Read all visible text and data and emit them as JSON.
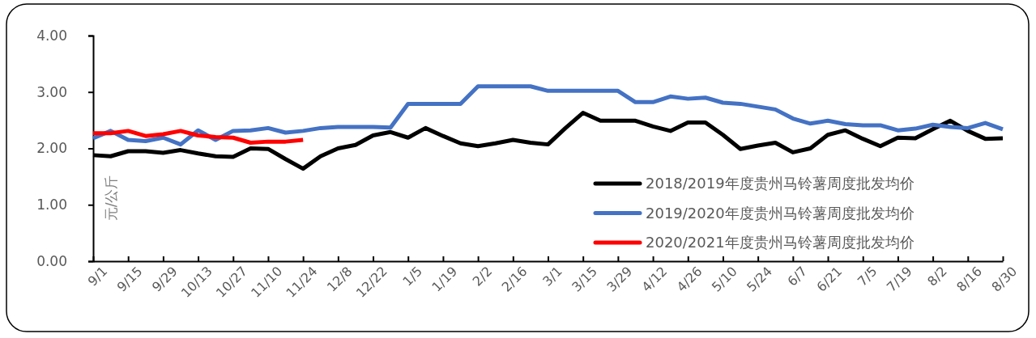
{
  "chart_data": {
    "type": "line",
    "ylabel": "元/公斤",
    "categories": [
      "9/1",
      null,
      "9/15",
      null,
      "9/29",
      null,
      "10/13",
      null,
      "10/27",
      null,
      "11/10",
      null,
      "11/24",
      null,
      "12/8",
      null,
      "12/22",
      null,
      "1/5",
      null,
      "1/19",
      null,
      "2/2",
      null,
      "2/16",
      null,
      "3/1",
      null,
      "3/15",
      null,
      "3/29",
      null,
      "4/12",
      null,
      "4/26",
      null,
      "5/10",
      null,
      "5/24",
      null,
      "6/7",
      null,
      "6/21",
      null,
      "7/5",
      null,
      "7/19",
      null,
      "8/2",
      null,
      "8/16",
      null,
      "8/30"
    ],
    "series": [
      {
        "name": "2018/2019年度贵州马铃薯周度批发均价",
        "color": "#000000",
        "values": [
          1.88,
          1.86,
          1.95,
          1.95,
          1.92,
          1.97,
          1.91,
          1.86,
          1.85,
          2.0,
          1.99,
          1.81,
          1.64,
          1.86,
          2.0,
          2.06,
          2.23,
          2.29,
          2.19,
          2.36,
          2.22,
          2.09,
          2.04,
          2.09,
          2.15,
          2.1,
          2.07,
          2.36,
          2.63,
          2.49,
          2.49,
          2.49,
          2.39,
          2.31,
          2.46,
          2.46,
          2.24,
          1.99,
          2.05,
          2.1,
          1.93,
          2.0,
          2.24,
          2.32,
          2.17,
          2.04,
          2.19,
          2.18,
          2.34,
          2.49,
          2.31,
          2.17,
          2.18
        ]
      },
      {
        "name": "2019/2020年度贵州马铃薯周度批发均价",
        "color": "#4472c4",
        "values": [
          2.18,
          2.31,
          2.15,
          2.13,
          2.19,
          2.07,
          2.32,
          2.15,
          2.31,
          2.32,
          2.36,
          2.28,
          2.31,
          2.36,
          2.38,
          2.38,
          2.38,
          2.37,
          2.79,
          2.79,
          2.79,
          2.79,
          3.1,
          3.1,
          3.1,
          3.1,
          3.02,
          3.02,
          3.02,
          3.02,
          3.02,
          2.82,
          2.82,
          2.92,
          2.88,
          2.9,
          2.81,
          2.79,
          2.74,
          2.69,
          2.53,
          2.44,
          2.49,
          2.43,
          2.41,
          2.41,
          2.32,
          2.35,
          2.42,
          2.38,
          2.36,
          2.45,
          2.34
        ]
      },
      {
        "name": "2020/2021年度贵州马铃薯周度批发均价",
        "color": "#ff0000",
        "values": [
          2.27,
          2.27,
          2.31,
          2.22,
          2.25,
          2.31,
          2.23,
          2.2,
          2.19,
          2.1,
          2.12,
          2.12,
          2.15,
          null,
          null,
          null,
          null,
          null,
          null,
          null,
          null,
          null,
          null,
          null,
          null,
          null,
          null,
          null,
          null,
          null,
          null,
          null,
          null,
          null,
          null,
          null,
          null,
          null,
          null,
          null,
          null,
          null,
          null,
          null,
          null,
          null,
          null,
          null,
          null,
          null,
          null,
          null,
          null
        ]
      }
    ],
    "ylim": [
      0,
      4
    ],
    "yticks": [
      {
        "value": 0,
        "label": "0.00"
      },
      {
        "value": 1,
        "label": "1.00"
      },
      {
        "value": 2,
        "label": "2.00"
      },
      {
        "value": 3,
        "label": "3.00"
      },
      {
        "value": 4,
        "label": "4.00"
      }
    ],
    "legend": "bottom right",
    "marker": "none",
    "line_style": "solid"
  }
}
